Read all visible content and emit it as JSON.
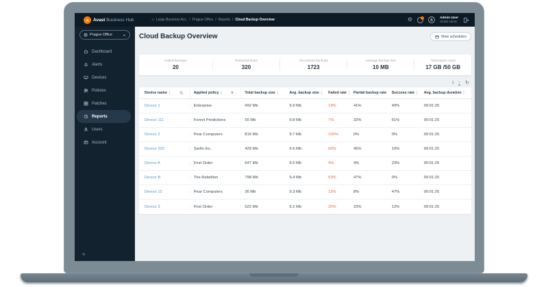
{
  "topbar": {
    "brand_bold": "Avast",
    "brand_rest": " Business Hub",
    "breadcrumb": [
      "Large Business Acc.",
      "Prague Office",
      "Reports",
      "Cloud Backup Overview"
    ],
    "icons": [
      "home-icon",
      "settings-gear-icon",
      "notifications-icon",
      "avatar-icon",
      "logout-icon"
    ],
    "user_name": "Admin User",
    "user_role": "Global Admin"
  },
  "sidebar": {
    "site_selector": "Prague Office",
    "site_selector_icons": [
      "site-icon",
      "chevron-down-icon"
    ],
    "items": [
      {
        "label": "Dashboard",
        "icon": "home-icon",
        "active": false
      },
      {
        "label": "Alerts",
        "icon": "bell-icon",
        "active": false
      },
      {
        "label": "Devices",
        "icon": "monitor-icon",
        "active": false
      },
      {
        "label": "Policies",
        "icon": "sliders-icon",
        "active": false
      },
      {
        "label": "Patches",
        "icon": "grid-icon",
        "active": false
      },
      {
        "label": "Reports",
        "icon": "pie-chart-icon",
        "active": true
      },
      {
        "label": "Users",
        "icon": "user-icon",
        "active": false
      },
      {
        "label": "Account",
        "icon": "card-icon",
        "active": false
      }
    ],
    "collapse_glyph": "«"
  },
  "main": {
    "title": "Cloud Backup Overview",
    "view_schedules_label": "View schedules",
    "view_schedules_icon": "calendar-icon",
    "stats": [
      {
        "label": "Failed backups",
        "value": "20"
      },
      {
        "label": "Partial backups",
        "value": "320"
      },
      {
        "label": "Successful backups",
        "value": "1723"
      },
      {
        "label": "Average backup size",
        "value": "10 MB"
      },
      {
        "label": "Total space used",
        "value": "17 GB /50 GB"
      }
    ],
    "toolbar_icons": [
      "column-width-icon",
      "download-icon",
      "refresh-icon"
    ],
    "table": {
      "columns": [
        "Device name",
        "Applied policy",
        "Total backup size",
        "Avg. backup size",
        "Failed rate",
        "Partial backup rate",
        "Success rate",
        "Avg. backup duration"
      ],
      "header_icons": [
        "search-icon",
        "filter-icon"
      ],
      "rows": [
        [
          "Device 1",
          "Enterprise",
          "492 Mb",
          "9.9 Mb",
          "19%",
          "41%",
          "40%",
          "00:01:25"
        ],
        [
          "Device 111",
          "Forest Predictions",
          "55 Mb",
          "9.8 Mb",
          "7%",
          "32%",
          "61%",
          "00:01:25"
        ],
        [
          "Device 2",
          "Pear Computers",
          "816 Mb",
          "9.7 Mb",
          "100%",
          "0%",
          "0%",
          "00:01:25"
        ],
        [
          "Device 222",
          "Sarfin Inc.",
          "429 Mb",
          "9.6 Mb",
          "60%",
          "45%",
          "10%",
          "00:01:25"
        ],
        [
          "Device A",
          "First Order",
          "647 Mb",
          "9.5 Mb",
          "4%",
          "4%",
          "23%",
          "00:01:25"
        ],
        [
          "Device B",
          "The Rebellion",
          "798 Mb",
          "9.4 Mb",
          "53%",
          "47%",
          "0%",
          "00:01:25"
        ],
        [
          "Device 12",
          "Pear Computers",
          "36 Mb",
          "9.3 Mb",
          "12%",
          "8%",
          "47%",
          "00:01:25"
        ],
        [
          "Device 3",
          "First Order",
          "522 Mb",
          "9.2 Mb",
          "20%",
          "23%",
          "12%",
          "00:01:25"
        ]
      ]
    }
  },
  "colors": {
    "topbar_bg": "#0d1b27",
    "sidebar_bg": "#13222f",
    "active_item_bg": "#26394b",
    "main_bg": "#eef1f3",
    "accent_orange": "#ff7800",
    "link_blue": "#5a96c8",
    "failed_red": "#e2674d"
  }
}
